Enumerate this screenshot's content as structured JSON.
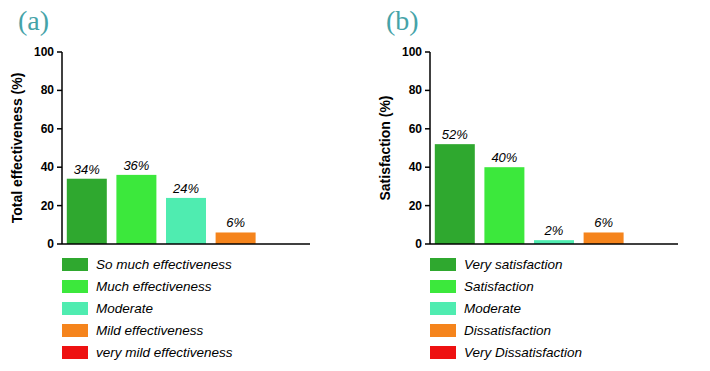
{
  "chart_data": [
    {
      "type": "bar",
      "title": "(a)",
      "y_label": "Total effectiveness (%)",
      "categories": [
        "So much effectiveness",
        "Much effectiveness",
        "Moderate",
        "Mild effectiveness",
        "very mild effectiveness"
      ],
      "values": [
        34,
        36,
        24,
        6,
        null
      ],
      "value_labels": [
        "34%",
        "36%",
        "24%",
        "6%",
        null
      ],
      "colors": [
        "#2fa82f",
        "#3ce83c",
        "#4fecb0",
        "#f5841c",
        "#ee1111"
      ],
      "ylim": [
        0,
        100
      ],
      "yticks": [
        0,
        20,
        40,
        60,
        80,
        100
      ],
      "data_labels": true,
      "legend": "bottom",
      "tick_labels": "y"
    },
    {
      "type": "bar",
      "title": "(b)",
      "y_label": "Satisfaction (%)",
      "categories": [
        "Very satisfaction",
        "Satisfaction",
        "Moderate",
        "Dissatisfaction",
        "Very Dissatisfaction"
      ],
      "values": [
        52,
        40,
        2,
        6,
        null
      ],
      "value_labels": [
        "52%",
        "40%",
        "2%",
        "6%",
        null
      ],
      "colors": [
        "#2fa82f",
        "#3ce83c",
        "#4fecb0",
        "#f5841c",
        "#ee1111"
      ],
      "ylim": [
        0,
        100
      ],
      "yticks": [
        0,
        20,
        40,
        60,
        80,
        100
      ],
      "data_labels": true,
      "legend": "bottom",
      "tick_labels": "y"
    }
  ]
}
